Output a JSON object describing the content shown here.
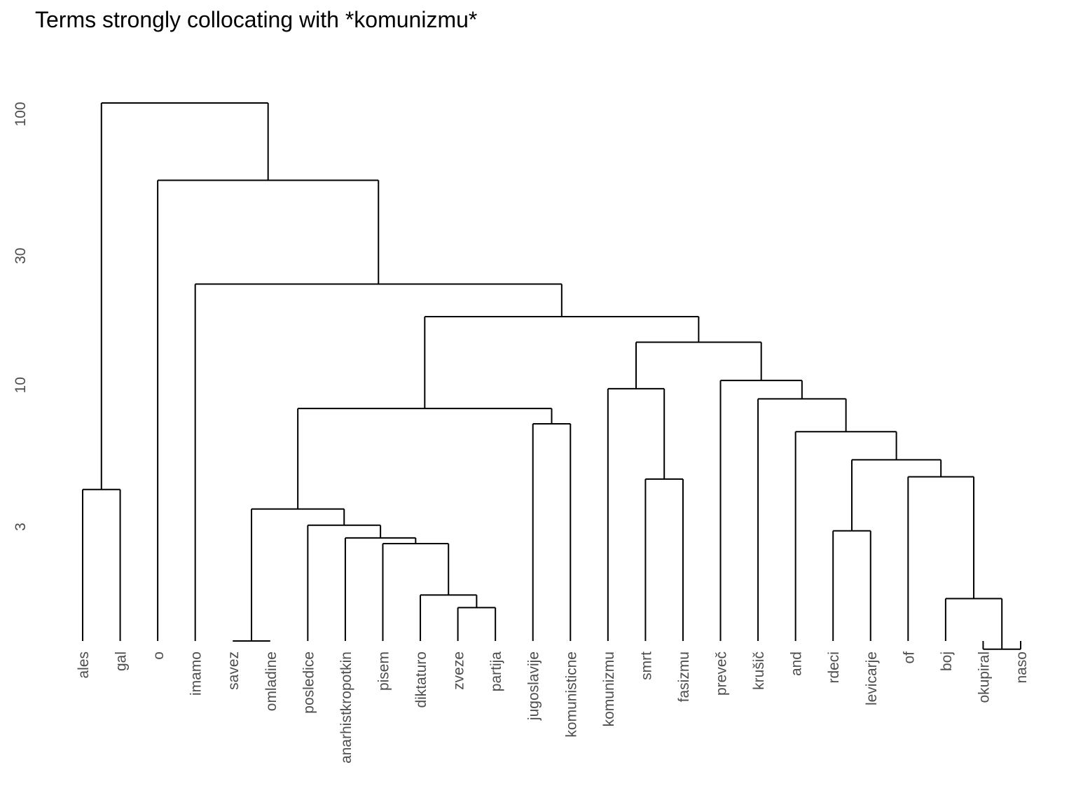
{
  "chart_data": {
    "type": "dendrogram",
    "title": "Terms strongly collocating with *komunizmu*",
    "xlabel": "",
    "ylabel": "",
    "y_scale": "log",
    "y_ticks": [
      3,
      10,
      30,
      100
    ],
    "leaves": [
      "ales",
      "gal",
      "o",
      "imamo",
      "savez",
      "omladine",
      "posledice",
      "anarhistkropotkin",
      "pisem",
      "diktaturo",
      "zveze",
      "partija",
      "jugoslavije",
      "komunisticne",
      "komunizmu",
      "smrt",
      "fasizmu",
      "preveč",
      "krušič",
      "and",
      "rdeci",
      "levicarje",
      "of",
      "boj",
      "okupiral",
      "naso"
    ],
    "merges": [
      {
        "a": "savez",
        "b": "omladine",
        "height": 1.0
      },
      {
        "a": "okupiral",
        "b": "naso",
        "height": 1.06
      },
      {
        "a": "zveze",
        "b": "partija",
        "height": 1.51
      },
      {
        "a": "boj",
        "b": "okupiral+naso",
        "height": 1.63
      },
      {
        "a": "diktaturo",
        "b": "zveze+partija",
        "height": 1.68
      },
      {
        "a": "pisem",
        "b": "diktaturo+zveze+partija",
        "height": 2.6
      },
      {
        "a": "anarhistkropotkin",
        "b": "pisem+diktaturo+zveze+partija",
        "height": 2.73
      },
      {
        "a": "rdeci",
        "b": "levicarje",
        "height": 2.9
      },
      {
        "a": "posledice",
        "b": "anarhistkropotkin+pisem+diktaturo+zveze+partija",
        "height": 3.04
      },
      {
        "a": "savez+omladine",
        "b": "posledice+anarhistkropotkin+pisem+diktaturo+zveze+partija",
        "height": 3.49
      },
      {
        "a": "ales",
        "b": "gal",
        "height": 4.12
      },
      {
        "a": "smrt",
        "b": "fasizmu",
        "height": 4.5
      },
      {
        "a": "of",
        "b": "boj+okupiral+naso",
        "height": 4.59
      },
      {
        "a": "rdeci+levicarje",
        "b": "of+boj+okupiral+naso",
        "height": 5.3
      },
      {
        "a": "and",
        "b": "rdeci+levicarje+of+boj+okupiral+naso",
        "height": 6.73
      },
      {
        "a": "jugoslavije",
        "b": "komunisticne",
        "height": 7.2
      },
      {
        "a": "posledice-group",
        "b": "jugoslavije+komunisticne",
        "height": 8.2
      },
      {
        "a": "krušič",
        "b": "and-group",
        "height": 8.9
      },
      {
        "a": "komunizmu",
        "b": "smrt+fasizmu",
        "height": 9.7
      },
      {
        "a": "preveč",
        "b": "krušič-group",
        "height": 10.4
      },
      {
        "a": "komunizmu-group",
        "b": "preveč-group",
        "height": 14.4
      },
      {
        "a": "komunizmu-preveč-group",
        "b": "",
        "height": 17.9
      },
      {
        "a": "savez-jugoslavije-group",
        "b": "komunizmu-preveč-group",
        "height": 17.9
      },
      {
        "a": "imamo",
        "b": "savez-komunizmu-group",
        "height": 23.6
      },
      {
        "a": "o",
        "b": "imamo-group",
        "height": 57.0
      },
      {
        "a": "ales+gal",
        "b": "o-group",
        "height": 110.0
      }
    ]
  }
}
